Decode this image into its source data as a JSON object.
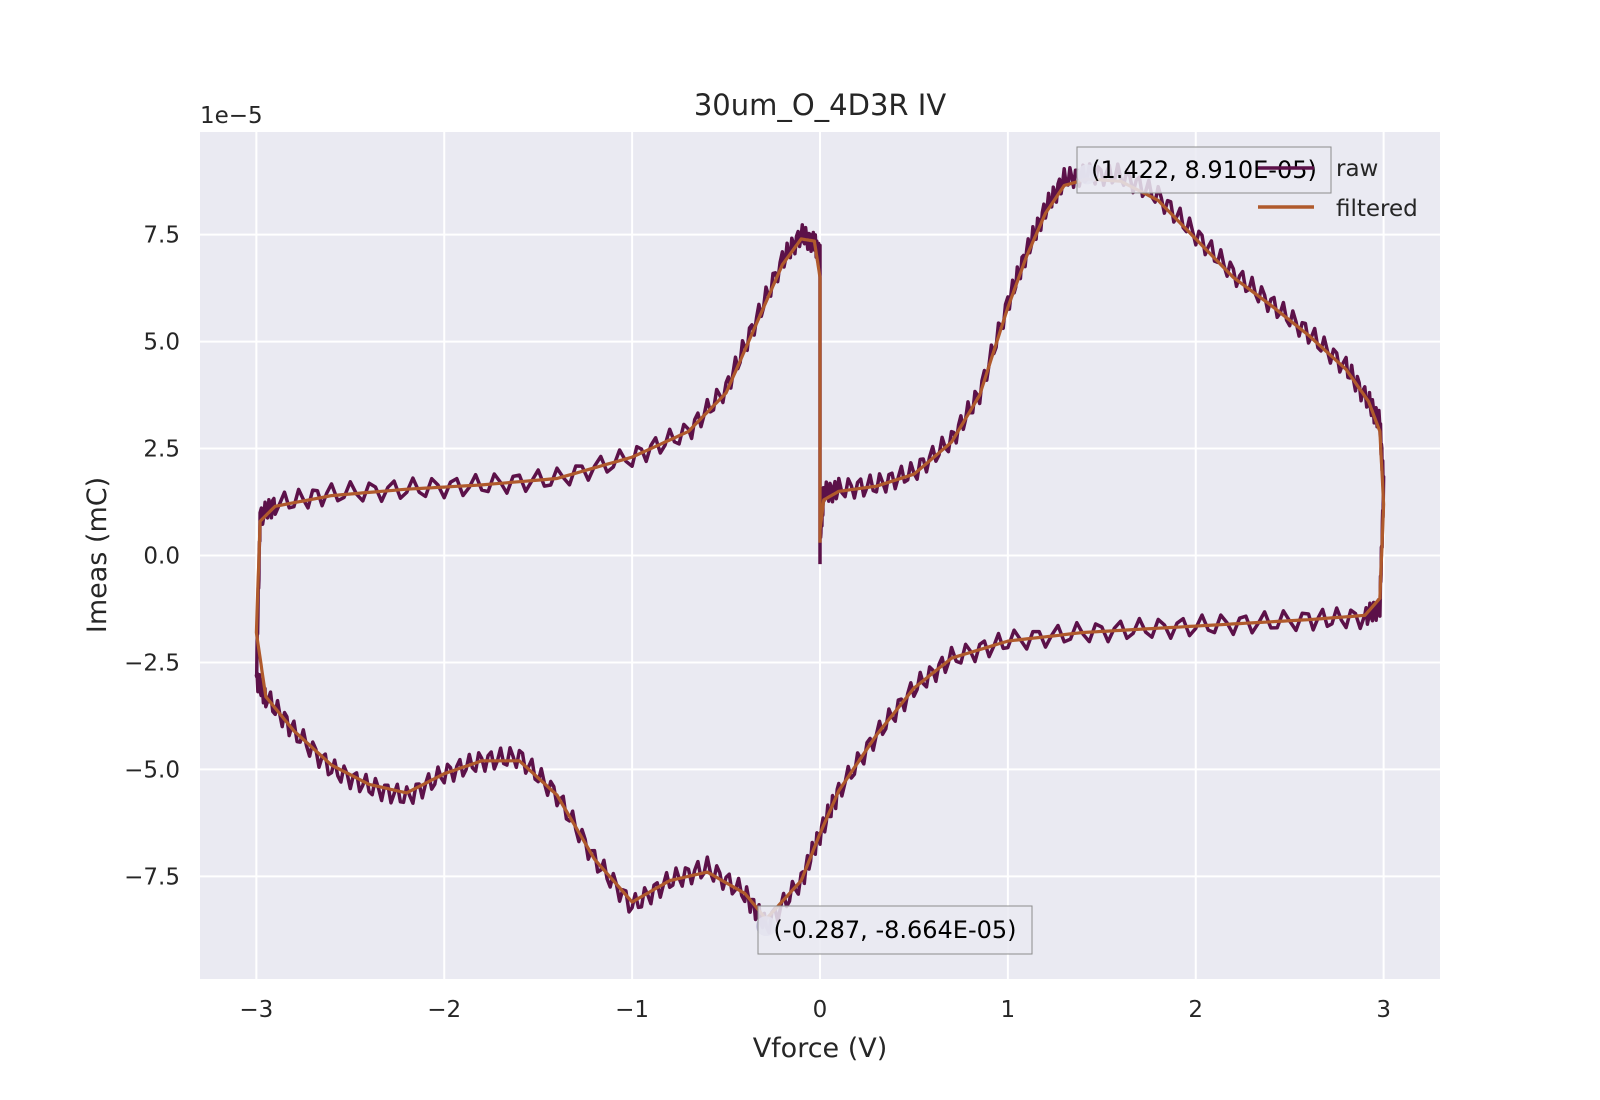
{
  "chart_data": {
    "type": "line",
    "title": "30um_O_4D3R IV",
    "xlabel": "Vforce (V)",
    "ylabel": "Imeas (mC)",
    "y_offset_label": "1e−5",
    "y_scale_factor": 1e-05,
    "xlim": [
      -3.3,
      3.3
    ],
    "ylim": [
      -9.9e-05,
      9.9e-05
    ],
    "x_ticks": [
      -3,
      -2,
      -1,
      0,
      1,
      2,
      3
    ],
    "x_tick_labels": [
      "−3",
      "−2",
      "−1",
      "0",
      "1",
      "2",
      "3"
    ],
    "y_ticks": [
      -7.5e-05,
      -5e-05,
      -2.5e-05,
      0,
      2.5e-05,
      5e-05,
      7.5e-05
    ],
    "y_tick_labels": [
      "−7.5",
      "−5.0",
      "−2.5",
      "0.0",
      "2.5",
      "5.0",
      "7.5"
    ],
    "grid": true,
    "legend_position": "top-right",
    "colors": {
      "background": "#eaeaf2",
      "grid": "#ffffff",
      "raw": "#5c1149",
      "filtered": "#b05a2c",
      "marker": "#bdb8dc"
    },
    "series": [
      {
        "name": "raw",
        "color": "#5c1149",
        "x": [
          0,
          0.02,
          0.1,
          0.3,
          0.5,
          0.7,
          0.85,
          1.0,
          1.1,
          1.2,
          1.3,
          1.42,
          1.6,
          1.8,
          2.0,
          2.2,
          2.4,
          2.6,
          2.8,
          2.92,
          2.98,
          3.0,
          2.98,
          2.9,
          2.6,
          2.2,
          1.8,
          1.4,
          1.0,
          0.7,
          0.5,
          0.3,
          0.1,
          0.0,
          -0.1,
          -0.287,
          -0.4,
          -0.6,
          -0.8,
          -1.0,
          -1.2,
          -1.4,
          -1.6,
          -1.8,
          -2.0,
          -2.2,
          -2.4,
          -2.6,
          -2.8,
          -2.95,
          -3.0,
          -2.98,
          -2.9,
          -2.6,
          -2.2,
          -1.8,
          -1.4,
          -1.0,
          -0.7,
          -0.5,
          -0.35,
          -0.2,
          -0.1,
          -0.03,
          0.0,
          0.0
        ],
        "y": [
          4e-06,
          1.45e-05,
          1.55e-05,
          1.65e-05,
          1.95e-05,
          2.7e-05,
          3.8e-05,
          5.9e-05,
          7.1e-05,
          8.1e-05,
          8.8e-05,
          8.91e-05,
          8.9e-05,
          8.4e-05,
          7.5e-05,
          6.6e-05,
          5.9e-05,
          5.2e-05,
          4.4e-05,
          3.6e-05,
          3.1e-05,
          1.6e-05,
          -1.2e-05,
          -1.45e-05,
          -1.5e-05,
          -1.6e-05,
          -1.7e-05,
          -1.8e-05,
          -2e-05,
          -2.4e-05,
          -3.1e-05,
          -4.2e-05,
          -5.5e-05,
          -6.5e-05,
          -7.6e-05,
          -8.664e-05,
          -7.9e-05,
          -7.3e-05,
          -7.6e-05,
          -8.2e-05,
          -7.1e-05,
          -5.6e-05,
          -4.7e-05,
          -4.8e-05,
          -5.1e-05,
          -5.65e-05,
          -5.4e-05,
          -5e-05,
          -4.1e-05,
          -3.3e-05,
          -2.9e-05,
          9e-06,
          1.2e-05,
          1.45e-05,
          1.55e-05,
          1.65e-05,
          1.8e-05,
          2.3e-05,
          2.9e-05,
          3.9e-05,
          5.4e-05,
          6.9e-05,
          7.5e-05,
          7.3e-05,
          7e-05,
          -2e-06
        ]
      },
      {
        "name": "filtered",
        "color": "#b05a2c",
        "x": [
          0,
          0.02,
          0.1,
          0.3,
          0.5,
          0.7,
          0.85,
          1.0,
          1.1,
          1.2,
          1.3,
          1.42,
          1.6,
          1.8,
          2.0,
          2.2,
          2.4,
          2.6,
          2.8,
          2.92,
          2.98,
          3.0,
          2.98,
          2.9,
          2.6,
          2.2,
          1.8,
          1.4,
          1.0,
          0.7,
          0.5,
          0.3,
          0.1,
          0.0,
          -0.1,
          -0.287,
          -0.4,
          -0.6,
          -0.8,
          -1.0,
          -1.2,
          -1.4,
          -1.6,
          -1.8,
          -2.0,
          -2.2,
          -2.4,
          -2.6,
          -2.8,
          -2.95,
          -3.0,
          -2.98,
          -2.9,
          -2.6,
          -2.2,
          -1.8,
          -1.4,
          -1.0,
          -0.7,
          -0.5,
          -0.35,
          -0.2,
          -0.1,
          -0.03,
          0.0,
          0.0
        ],
        "y": [
          6e-06,
          1.3e-05,
          1.5e-05,
          1.62e-05,
          1.9e-05,
          2.65e-05,
          3.75e-05,
          5.8e-05,
          7e-05,
          8e-05,
          8.65e-05,
          8.8e-05,
          8.75e-05,
          8.3e-05,
          7.4e-05,
          6.5e-05,
          5.85e-05,
          5.15e-05,
          4.35e-05,
          3.6e-05,
          2.9e-05,
          1.2e-05,
          -1e-05,
          -1.4e-05,
          -1.5e-05,
          -1.6e-05,
          -1.7e-05,
          -1.8e-05,
          -2e-05,
          -2.4e-05,
          -3.1e-05,
          -4.2e-05,
          -5.5e-05,
          -6.5e-05,
          -7.6e-05,
          -8.5e-05,
          -7.9e-05,
          -7.4e-05,
          -7.6e-05,
          -8.1e-05,
          -7.1e-05,
          -5.6e-05,
          -4.8e-05,
          -4.8e-05,
          -5.1e-05,
          -5.55e-05,
          -5.35e-05,
          -4.9e-05,
          -4.1e-05,
          -3.3e-05,
          -1.8e-05,
          8e-06,
          1.15e-05,
          1.4e-05,
          1.55e-05,
          1.65e-05,
          1.8e-05,
          2.3e-05,
          2.9e-05,
          3.8e-05,
          5.3e-05,
          6.8e-05,
          7.4e-05,
          7.35e-05,
          6.5e-05,
          3e-06
        ]
      }
    ],
    "annotations": [
      {
        "text": "(1.422, 8.910E-05)",
        "x": 1.422,
        "y": 8.91e-05
      },
      {
        "text": "(-0.287, -8.664E-05)",
        "x": -0.287,
        "y": -8.664e-05
      }
    ]
  }
}
